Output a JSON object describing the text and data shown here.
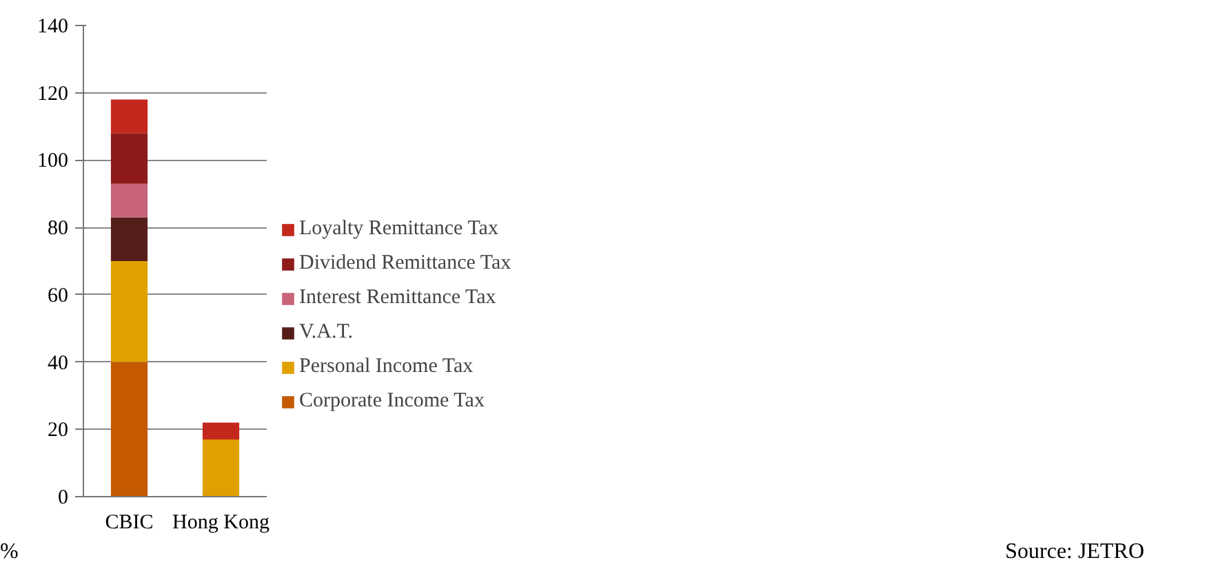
{
  "chart_data": {
    "type": "bar",
    "stacked": true,
    "ylabel": "%",
    "categories": [
      "CBIC",
      "Hong Kong"
    ],
    "series": [
      {
        "name": "Corporate Income Tax",
        "color": "#c55a00",
        "values": [
          40,
          0
        ]
      },
      {
        "name": "Personal Income Tax",
        "color": "#e0a000",
        "values": [
          30,
          17
        ]
      },
      {
        "name": "V.A.T.",
        "color": "#561e1b",
        "values": [
          13,
          0
        ]
      },
      {
        "name": "Interest Remittance Tax",
        "color": "#c86478",
        "values": [
          10,
          0
        ]
      },
      {
        "name": "Dividend Remittance Tax",
        "color": "#8e1a1a",
        "values": [
          15,
          0
        ]
      },
      {
        "name": "Loyalty Remittance Tax",
        "color": "#c4281c",
        "values": [
          10,
          5
        ]
      }
    ],
    "ylim": [
      0,
      140
    ],
    "yticks": [
      0,
      20,
      40,
      60,
      80,
      100,
      120,
      140
    ],
    "grid": "y",
    "legend": "right",
    "annotations": [
      "Source: JETRO"
    ]
  }
}
